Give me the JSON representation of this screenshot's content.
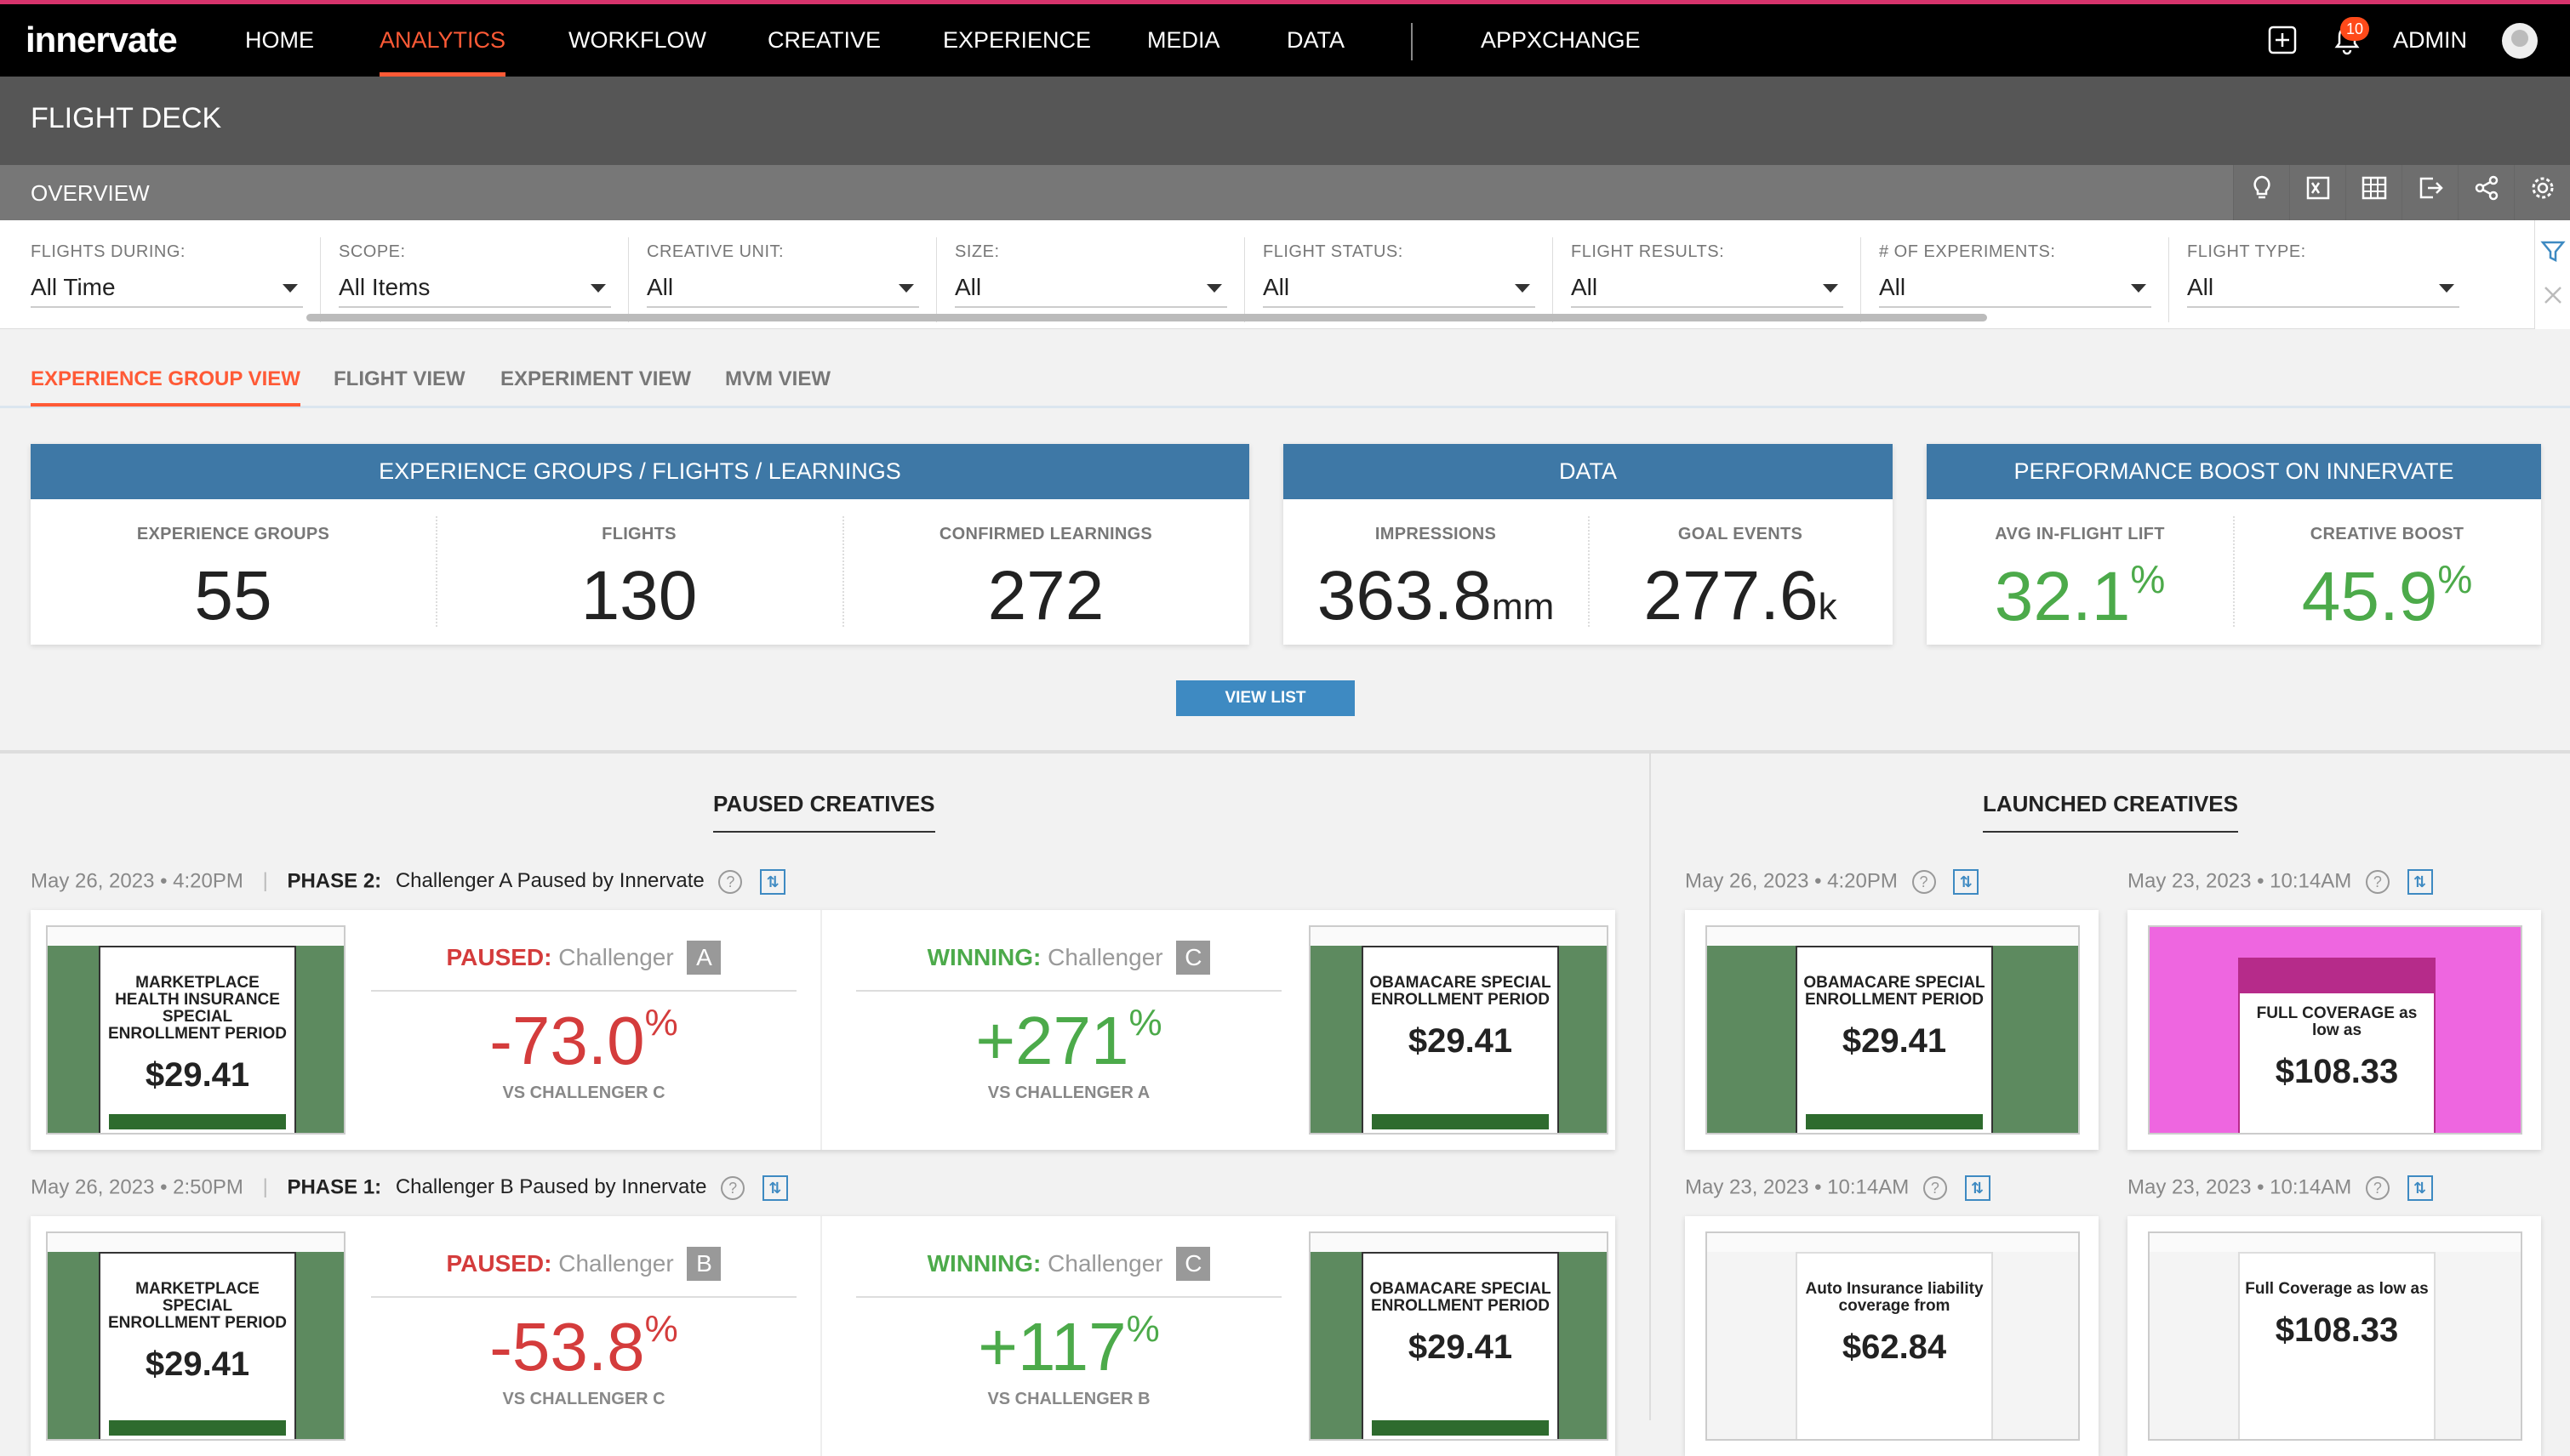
{
  "brand": {
    "logo": "innervate",
    "accent": "#ff5a36",
    "header_blue": "#3e78a6"
  },
  "nav": {
    "items": [
      "HOME",
      "ANALYTICS",
      "WORKFLOW",
      "CREATIVE",
      "EXPERIENCE",
      "MEDIA",
      "DATA",
      "APPXCHANGE"
    ],
    "active": "ANALYTICS",
    "notifications": "10",
    "user": "ADMIN"
  },
  "page": {
    "title": "FLIGHT DECK",
    "section": "OVERVIEW"
  },
  "filters": [
    {
      "label": "FLIGHTS DURING:",
      "value": "All Time"
    },
    {
      "label": "SCOPE:",
      "value": "All Items"
    },
    {
      "label": "CREATIVE UNIT:",
      "value": "All"
    },
    {
      "label": "SIZE:",
      "value": "All"
    },
    {
      "label": "FLIGHT STATUS:",
      "value": "All"
    },
    {
      "label": "FLIGHT RESULTS:",
      "value": "All"
    },
    {
      "label": "# OF EXPERIMENTS:",
      "value": "All"
    },
    {
      "label": "FLIGHT TYPE:",
      "value": "All"
    }
  ],
  "tabs": [
    "EXPERIENCE GROUP VIEW",
    "FLIGHT VIEW",
    "EXPERIMENT VIEW",
    "MVM VIEW"
  ],
  "cards": {
    "groups": {
      "header": "EXPERIENCE GROUPS / FLIGHTS / LEARNINGS",
      "stats": [
        {
          "label": "EXPERIENCE GROUPS",
          "value": "55"
        },
        {
          "label": "FLIGHTS",
          "value": "130"
        },
        {
          "label": "CONFIRMED LEARNINGS",
          "value": "272"
        }
      ]
    },
    "data": {
      "header": "DATA",
      "stats": [
        {
          "label": "IMPRESSIONS",
          "value": "363.8",
          "unit": "mm"
        },
        {
          "label": "GOAL EVENTS",
          "value": "277.6",
          "unit": "k"
        }
      ]
    },
    "boost": {
      "header": "PERFORMANCE BOOST ON INNERVATE",
      "stats": [
        {
          "label": "AVG IN-FLIGHT LIFT",
          "value": "32.1",
          "unit": "%"
        },
        {
          "label": "CREATIVE BOOST",
          "value": "45.9",
          "unit": "%"
        }
      ]
    }
  },
  "view_list": "VIEW LIST",
  "paused": {
    "title": "PAUSED CREATIVES",
    "rows": [
      {
        "date": "May 26, 2023 • 4:20PM",
        "phase": "PHASE 2:",
        "desc": "Challenger A Paused by Innervate",
        "left": {
          "status": "PAUSED:",
          "name": "Challenger",
          "key": "A",
          "value": "-73.0",
          "unit": "%",
          "vs": "VS CHALLENGER C"
        },
        "right": {
          "status": "WINNING:",
          "name": "Challenger",
          "key": "C",
          "value": "+271",
          "unit": "%",
          "vs": "VS CHALLENGER A"
        },
        "thumb_left": {
          "headline": "MARKETPLACE HEALTH INSURANCE SPECIAL ENROLLMENT PERIOD",
          "price": "$29.41"
        },
        "thumb_right": {
          "headline": "OBAMACARE SPECIAL ENROLLMENT PERIOD",
          "price": "$29.41"
        }
      },
      {
        "date": "May 26, 2023 • 2:50PM",
        "phase": "PHASE 1:",
        "desc": "Challenger B Paused by Innervate",
        "left": {
          "status": "PAUSED:",
          "name": "Challenger",
          "key": "B",
          "value": "-53.8",
          "unit": "%",
          "vs": "VS CHALLENGER C"
        },
        "right": {
          "status": "WINNING:",
          "name": "Challenger",
          "key": "C",
          "value": "+117",
          "unit": "%",
          "vs": "VS CHALLENGER B"
        },
        "thumb_left": {
          "headline": "MARKETPLACE SPECIAL ENROLLMENT PERIOD",
          "price": "$29.41"
        },
        "thumb_right": {
          "headline": "OBAMACARE SPECIAL ENROLLMENT PERIOD",
          "price": "$29.41"
        }
      }
    ]
  },
  "launched": {
    "title": "LAUNCHED CREATIVES",
    "items": [
      {
        "date": "May 26, 2023 • 4:20PM",
        "headline": "OBAMACARE SPECIAL ENROLLMENT PERIOD",
        "price": "$29.41"
      },
      {
        "date": "May 23, 2023 • 10:14AM",
        "headline": "FULL COVERAGE as low as",
        "price": "$108.33"
      },
      {
        "date": "May 23, 2023 • 10:14AM",
        "headline": "Auto Insurance liability coverage from",
        "price": "$62.84"
      },
      {
        "date": "May 23, 2023 • 10:14AM",
        "headline": "Full Coverage as low as",
        "price": "$108.33"
      }
    ]
  }
}
